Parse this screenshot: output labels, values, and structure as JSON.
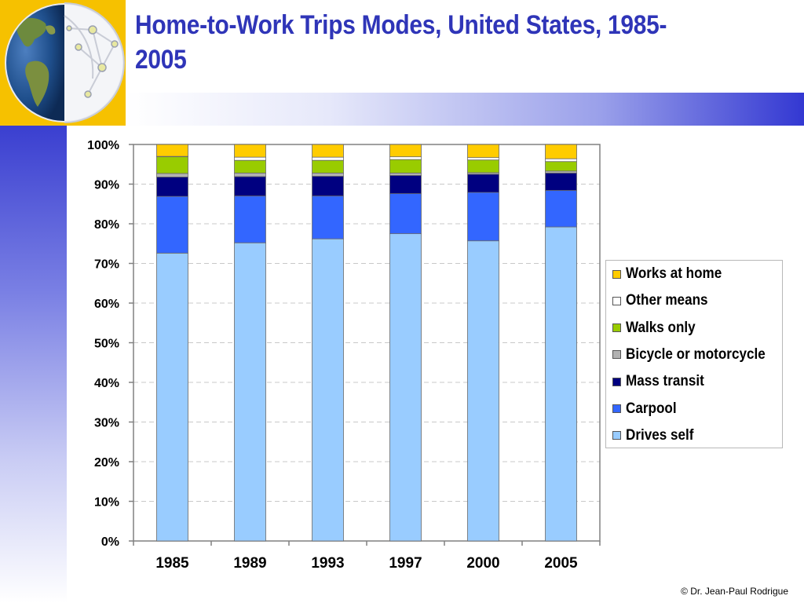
{
  "slide": {
    "title": "Home-to-Work Trips Modes, United States, 1985-2005",
    "copyright": "© Dr. Jean-Paul Rodrigue"
  },
  "colors": {
    "accent_blue": "#2f35b8",
    "logo_yellow": "#f6c100"
  },
  "logo": {
    "icon": "globe-network-icon"
  },
  "chart_data": {
    "type": "bar",
    "stacked": true,
    "categories": [
      "1985",
      "1989",
      "1993",
      "1997",
      "2000",
      "2005"
    ],
    "yticks": [
      "0%",
      "10%",
      "20%",
      "30%",
      "40%",
      "50%",
      "60%",
      "70%",
      "80%",
      "90%",
      "100%"
    ],
    "ylim": [
      0,
      100
    ],
    "grid": true,
    "legend_position": "right",
    "series": [
      {
        "name": "Drives self",
        "color": "#99ccff",
        "values": [
          72.6,
          75.2,
          76.2,
          77.5,
          75.7,
          79.2
        ]
      },
      {
        "name": "Carpool",
        "color": "#3366ff",
        "values": [
          14.3,
          11.8,
          10.8,
          10.1,
          12.2,
          9.2
        ]
      },
      {
        "name": "Mass transit",
        "color": "#000080",
        "values": [
          4.9,
          4.9,
          5.0,
          4.6,
          4.6,
          4.4
        ]
      },
      {
        "name": "Bicycle or motorcycle",
        "color": "#b2b2b2",
        "values": [
          0.9,
          0.9,
          0.8,
          0.6,
          0.4,
          0.5
        ]
      },
      {
        "name": "Walks only",
        "color": "#99cc00",
        "values": [
          4.2,
          3.2,
          3.2,
          3.4,
          3.2,
          2.4
        ]
      },
      {
        "name": "Other means",
        "color": "#ffffff",
        "values": [
          0.1,
          0.8,
          0.8,
          0.7,
          0.6,
          0.7
        ]
      },
      {
        "name": "Works at home",
        "color": "#ffcc00",
        "values": [
          3.0,
          3.2,
          3.2,
          3.1,
          3.3,
          3.6
        ]
      }
    ]
  }
}
